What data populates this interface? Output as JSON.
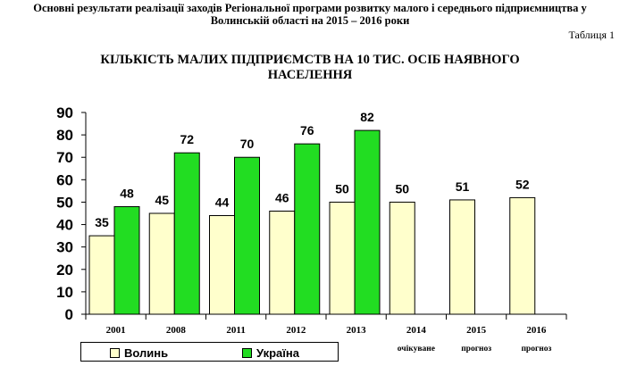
{
  "document": {
    "title_line1": "Основні результати реалізації заходів Регіональної програми розвитку малого і середнього підприємництва у",
    "title_line2": "Волинській області на  2015 – 2016  роки",
    "table_label": "Таблиця 1"
  },
  "chart_data": {
    "type": "bar",
    "title_line1": "КІЛЬКІСТЬ МАЛИХ ПІДПРИЄМСТВ НА 10 ТИС. ОСІБ НАЯВНОГО",
    "title_line2": "НАСЕЛЕННЯ",
    "categories": [
      "2001",
      "2008",
      "2011",
      "2012",
      "2013",
      "2014",
      "2015",
      "2016"
    ],
    "category_notes": [
      "",
      "",
      "",
      "",
      "",
      "очікуване",
      "прогноз",
      "прогноз"
    ],
    "series": [
      {
        "name": "Волинь",
        "values": [
          35,
          45,
          44,
          46,
          50,
          50,
          51,
          52
        ],
        "color": "#FFFFCC"
      },
      {
        "name": "Україна",
        "values": [
          48,
          72,
          70,
          76,
          82,
          null,
          null,
          null
        ],
        "color": "#22DD22"
      }
    ],
    "ylim": [
      0,
      90
    ],
    "yticks": [
      0,
      10,
      20,
      30,
      40,
      50,
      60,
      70,
      80,
      90
    ],
    "grid": false,
    "legend": "bottom-left",
    "xlabel": "",
    "ylabel": ""
  }
}
